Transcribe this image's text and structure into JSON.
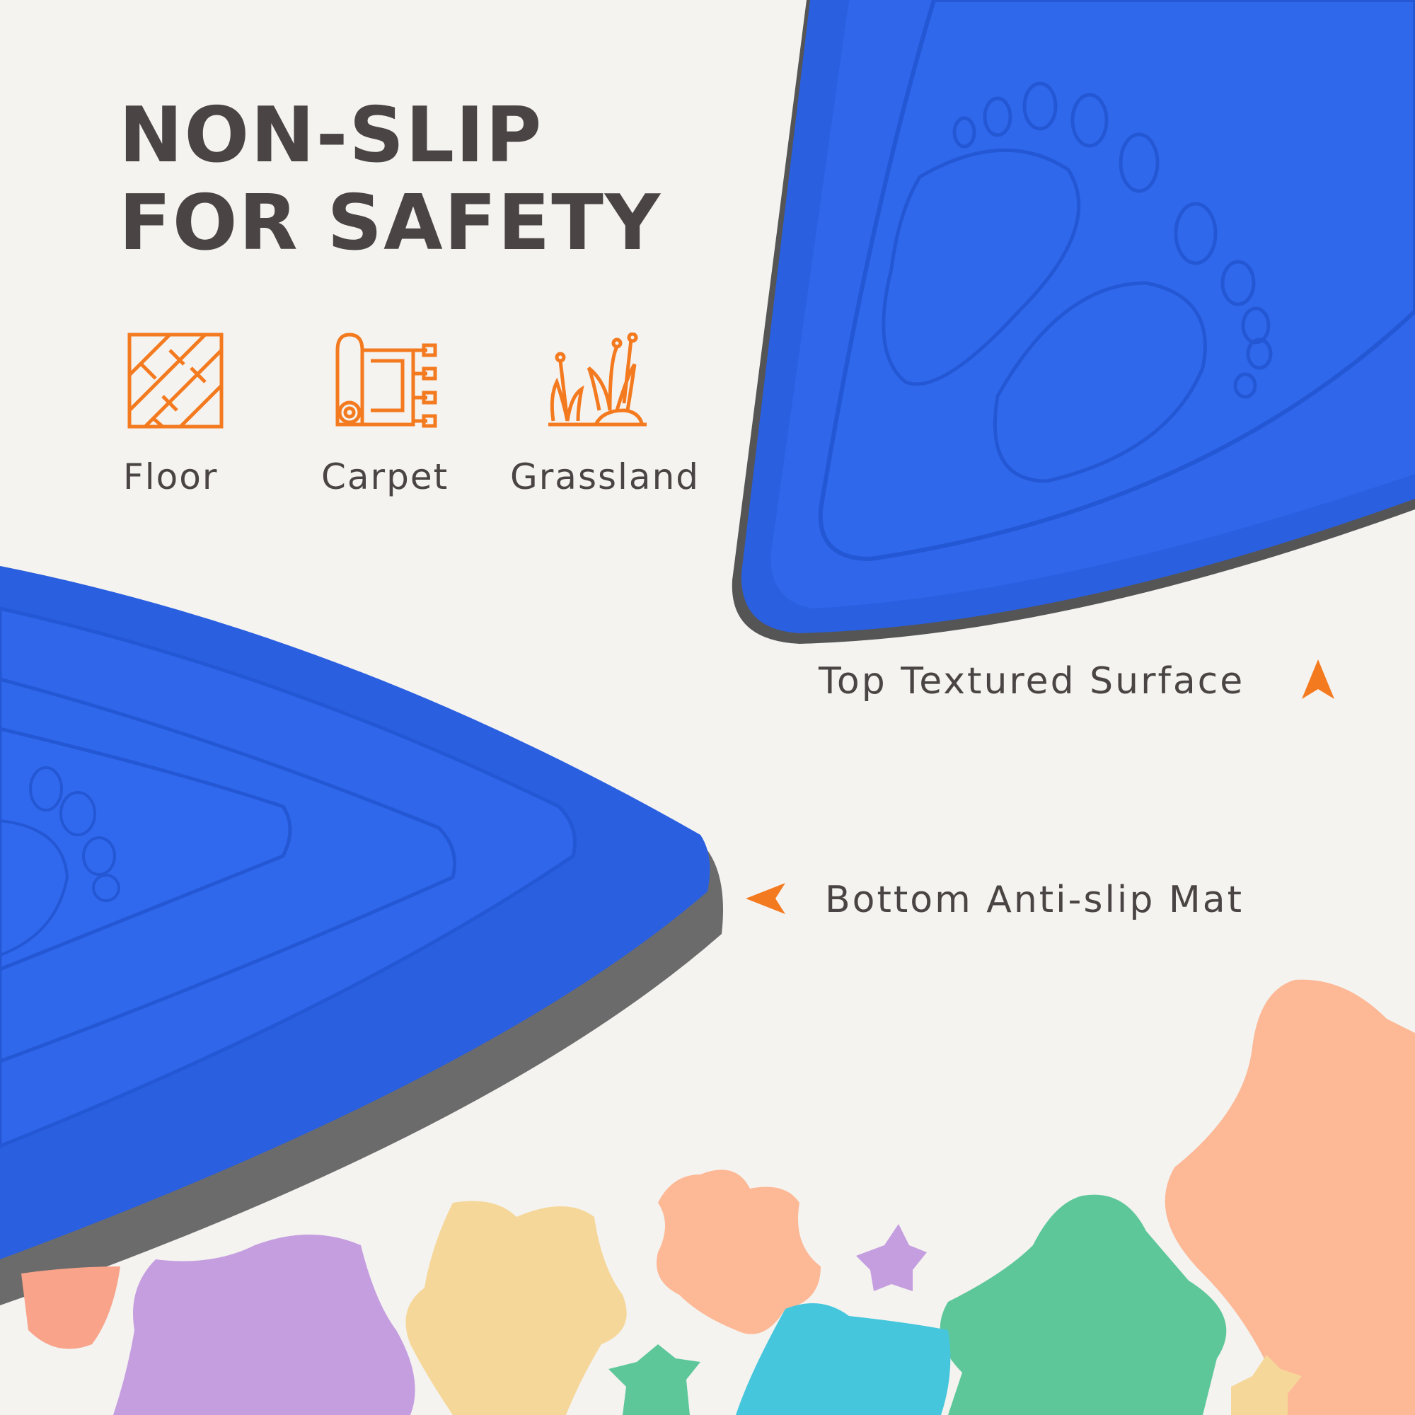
{
  "headline": {
    "line1": "NON-SLIP",
    "line2": "FOR SAFETY"
  },
  "surfaces": [
    {
      "label": "Floor",
      "icon": "floor-tiles-icon"
    },
    {
      "label": "Carpet",
      "icon": "rolled-carpet-icon"
    },
    {
      "label": "Grassland",
      "icon": "grass-icon"
    }
  ],
  "callouts": {
    "top": {
      "label": "Top Textured Surface",
      "icon": "arrow-up-icon"
    },
    "bottom": {
      "label": "Bottom Anti-slip Mat",
      "icon": "arrow-left-icon"
    }
  },
  "colors": {
    "accent": "#f47a20",
    "product_blue": "#2a5fe0",
    "edge_gray": "#6b6b6b",
    "text": "#4a4544"
  }
}
